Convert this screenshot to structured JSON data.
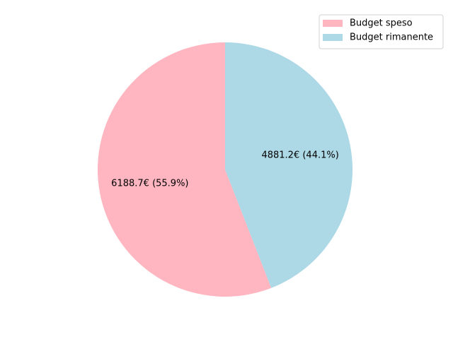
{
  "chart_data": {
    "type": "pie",
    "title": "",
    "series": [
      {
        "name": "Budget speso",
        "value": 6188.7,
        "percent": 55.9,
        "label": "6188.7€ (55.9%)",
        "color": "#ffb6c1"
      },
      {
        "name": "Budget rimanente",
        "value": 4881.2,
        "percent": 44.1,
        "label": "4881.2€ (44.1%)",
        "color": "#add8e6"
      }
    ],
    "start_angle_deg": 90,
    "direction": "counterclockwise",
    "legend_position": "top-right"
  }
}
